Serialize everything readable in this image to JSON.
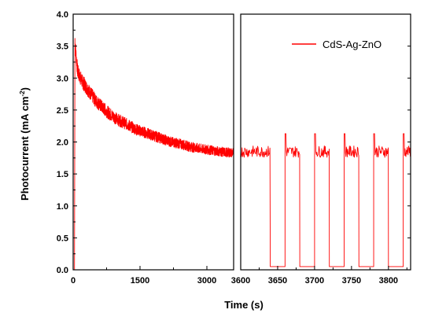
{
  "chart_data": [
    {
      "panel": "left",
      "type": "line",
      "xlim": [
        0,
        3600
      ],
      "ylim": [
        0.0,
        4.0
      ],
      "xticks": [
        "0",
        "1500",
        "3000"
      ],
      "yticks": [
        "0.0",
        "0.5",
        "1.0",
        "1.5",
        "2.0",
        "2.5",
        "3.0",
        "3.5",
        "4.0"
      ],
      "ylabel": "Photocurrent (mA cm⁻²)",
      "series": [
        {
          "color": "#ff0000",
          "x": [
            0,
            30,
            40,
            100,
            200,
            300,
            400,
            500,
            600,
            800,
            1000,
            1200,
            1400,
            1600,
            1800,
            2000,
            2200,
            2400,
            2600,
            2800,
            3000,
            3200,
            3400,
            3600
          ],
          "y": [
            0.0,
            0.0,
            3.55,
            3.1,
            2.95,
            2.85,
            2.75,
            2.65,
            2.58,
            2.45,
            2.35,
            2.28,
            2.2,
            2.15,
            2.1,
            2.05,
            2.0,
            1.97,
            1.93,
            1.9,
            1.88,
            1.86,
            1.84,
            1.83
          ]
        }
      ]
    },
    {
      "panel": "right",
      "type": "line",
      "xlim": [
        3600,
        3830
      ],
      "ylim": [
        0.0,
        4.0
      ],
      "xticks": [
        "3600",
        "3650",
        "3700",
        "3750",
        "3800"
      ],
      "xlabel": "Time (s)",
      "legend": "top-right",
      "series": [
        {
          "name": "CdS-Ag-ZnO",
          "color": "#ff0000",
          "on_level": 1.85,
          "off_level": 0.05,
          "light_on_intervals": [
            [
              3600,
              3640
            ],
            [
              3660,
              3680
            ],
            [
              3700,
              3720
            ],
            [
              3740,
              3760
            ],
            [
              3780,
              3800
            ],
            [
              3820,
              3830
            ]
          ],
          "light_off_intervals": [
            [
              3640,
              3660
            ],
            [
              3680,
              3700
            ],
            [
              3720,
              3740
            ],
            [
              3760,
              3780
            ],
            [
              3800,
              3820
            ]
          ]
        }
      ]
    }
  ]
}
